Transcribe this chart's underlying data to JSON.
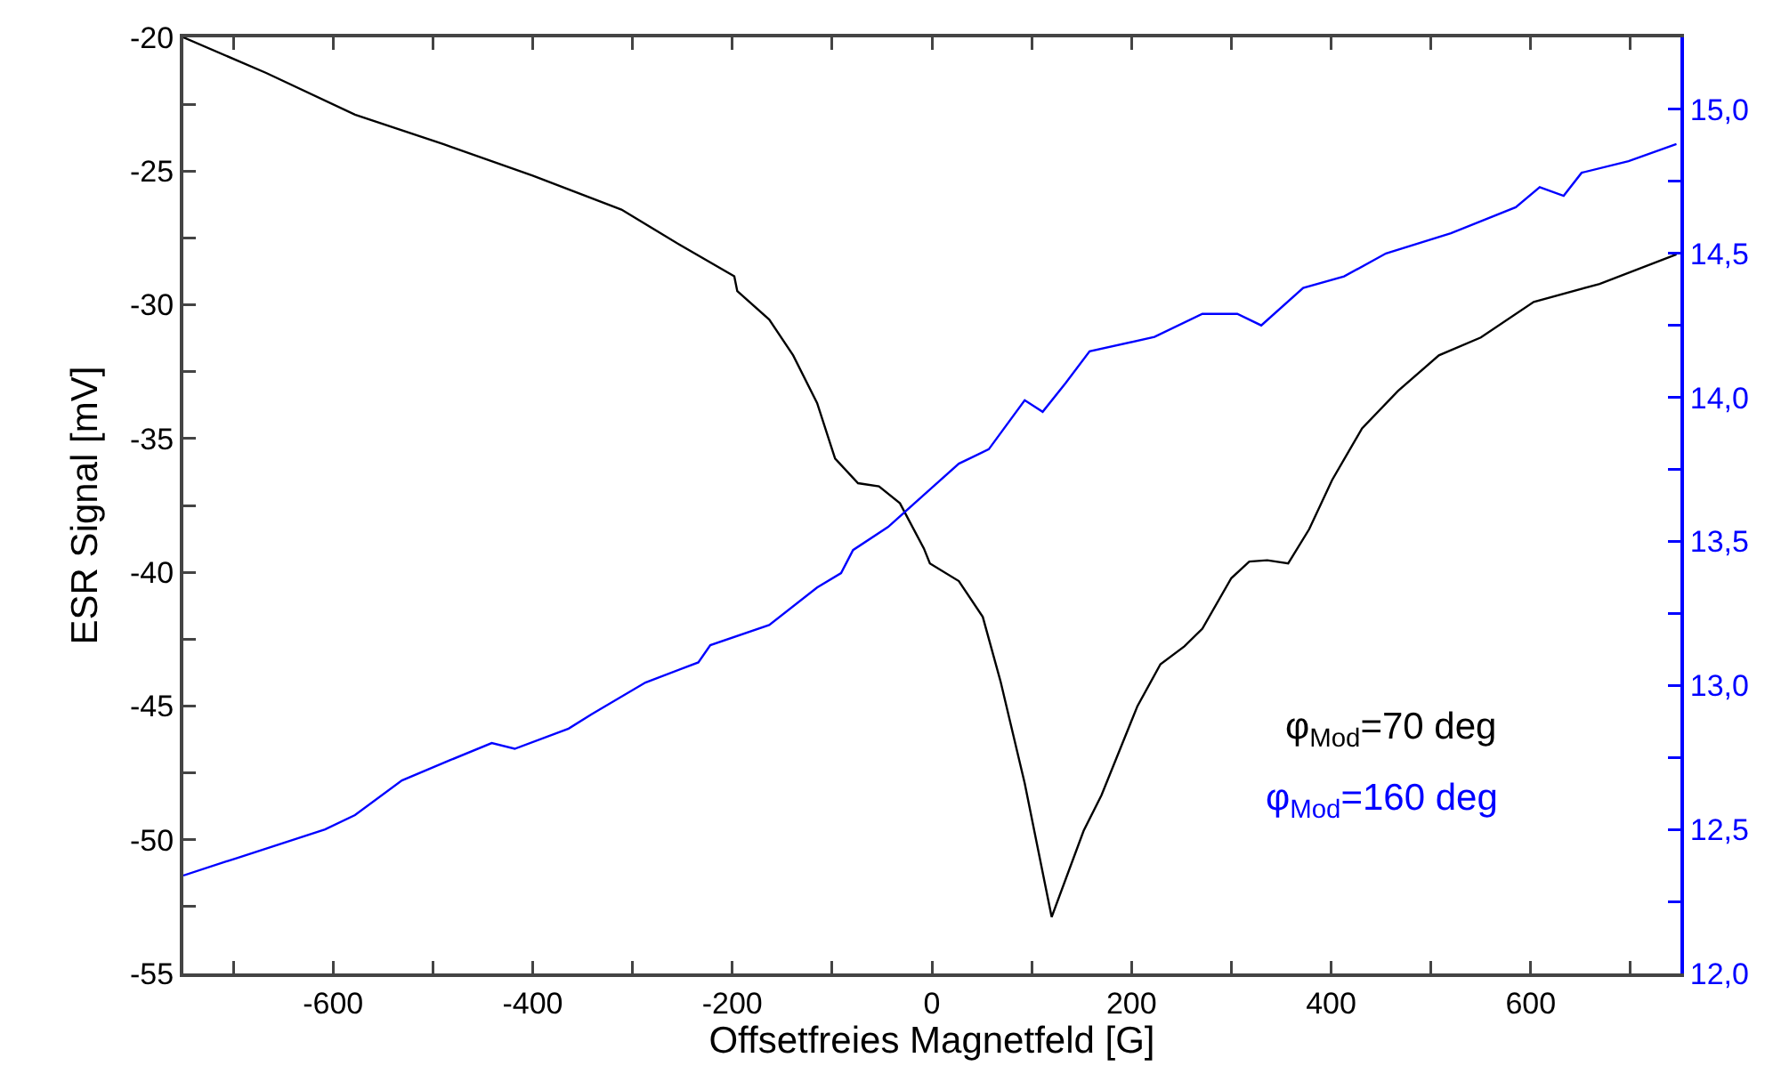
{
  "chart_data": {
    "type": "line",
    "xlabel": "Offsetfreies Magnetfeld [G]",
    "ylabel": "ESR Signal [mV]",
    "xlim": [
      -750,
      750
    ],
    "xticks": [
      {
        "value": -700,
        "label": null
      },
      -600,
      {
        "value": -500,
        "label": null
      },
      -400,
      {
        "value": -300,
        "label": null
      },
      -200,
      {
        "value": -100,
        "label": null
      },
      0,
      {
        "value": 100,
        "label": null
      },
      200,
      {
        "value": 300,
        "label": null
      },
      400,
      {
        "value": 500,
        "label": null
      },
      600,
      {
        "value": 700,
        "label": null
      }
    ],
    "ylim": [
      -55,
      -20
    ],
    "yticks": [
      -55,
      {
        "value": -52.5,
        "label": null
      },
      -50,
      {
        "value": -47.5,
        "label": null
      },
      -45,
      {
        "value": -42.5,
        "label": null
      },
      -40,
      {
        "value": -37.5,
        "label": null
      },
      -35,
      {
        "value": -32.5,
        "label": null
      },
      -30,
      {
        "value": -27.5,
        "label": null
      },
      -25,
      {
        "value": -22.5,
        "label": null
      },
      -20
    ],
    "y2lim": [
      12,
      15.25
    ],
    "y2ticks": [
      {
        "value": 12,
        "label": "12,0"
      },
      {
        "value": 12.25,
        "label": null
      },
      {
        "value": 12.5,
        "label": "12,5"
      },
      {
        "value": 12.75,
        "label": null
      },
      {
        "value": 13,
        "label": "13,0"
      },
      {
        "value": 13.25,
        "label": null
      },
      {
        "value": 13.5,
        "label": "13,5"
      },
      {
        "value": 13.75,
        "label": null
      },
      {
        "value": 14,
        "label": "14,0"
      },
      {
        "value": 14.25,
        "label": null
      },
      {
        "value": 14.5,
        "label": "14,5"
      },
      {
        "value": 14.75,
        "label": null
      },
      {
        "value": 15,
        "label": "15,0"
      }
    ],
    "grid": false,
    "legend": "bottom right",
    "marker": "none",
    "line_style": "solid",
    "series": [
      {
        "name": "φ$_{Mod}$=70 deg",
        "color": "#000000",
        "x": [
          -750,
          -667,
          -578,
          -489,
          -400,
          -311,
          -252,
          -198,
          -195,
          -163,
          -139,
          -115,
          -97,
          -74,
          -53,
          -32,
          -8,
          -2,
          27,
          51,
          69,
          93,
          120,
          152,
          170,
          206,
          229,
          253,
          271,
          300,
          318,
          336,
          357,
          378,
          401,
          431,
          467,
          508,
          550,
          603,
          669,
          746
        ],
        "values": [
          -20,
          -21.33,
          -22.89,
          -24.0,
          -25.17,
          -26.44,
          -27.77,
          -28.93,
          -29.49,
          -30.55,
          -31.89,
          -33.67,
          -35.75,
          -36.67,
          -36.79,
          -37.42,
          -39.11,
          -39.67,
          -40.33,
          -41.67,
          -44.11,
          -47.89,
          -52.89,
          -49.67,
          -48.33,
          -45.0,
          -43.44,
          -42.77,
          -42.11,
          -40.22,
          -39.6,
          -39.55,
          -39.67,
          -38.39,
          -36.55,
          -34.62,
          -33.22,
          -31.89,
          -31.22,
          -29.89,
          -29.22,
          -28.11
        ]
      },
      {
        "name": "φ$_{Mod}$=160 deg",
        "color": "#0000ff",
        "axis": "y2",
        "x": [
          -750,
          -697,
          -608,
          -578,
          -531,
          -483,
          -441,
          -418,
          -364,
          -341,
          -287,
          -234,
          -222,
          -163,
          -115,
          -91,
          -79,
          -44,
          -2,
          27,
          57,
          93,
          111,
          134,
          158,
          223,
          271,
          306,
          330,
          372,
          413,
          455,
          520,
          585,
          609,
          633,
          651,
          698,
          746
        ],
        "values": [
          12.34,
          12.4,
          12.5,
          12.55,
          12.67,
          12.74,
          12.8,
          12.78,
          12.85,
          12.9,
          13.01,
          13.08,
          13.14,
          13.21,
          13.34,
          13.39,
          13.47,
          13.55,
          13.68,
          13.77,
          13.82,
          13.99,
          13.95,
          14.05,
          14.16,
          14.21,
          14.29,
          14.29,
          14.25,
          14.38,
          14.42,
          14.5,
          14.57,
          14.66,
          14.73,
          14.7,
          14.78,
          14.82,
          14.88
        ]
      }
    ]
  }
}
